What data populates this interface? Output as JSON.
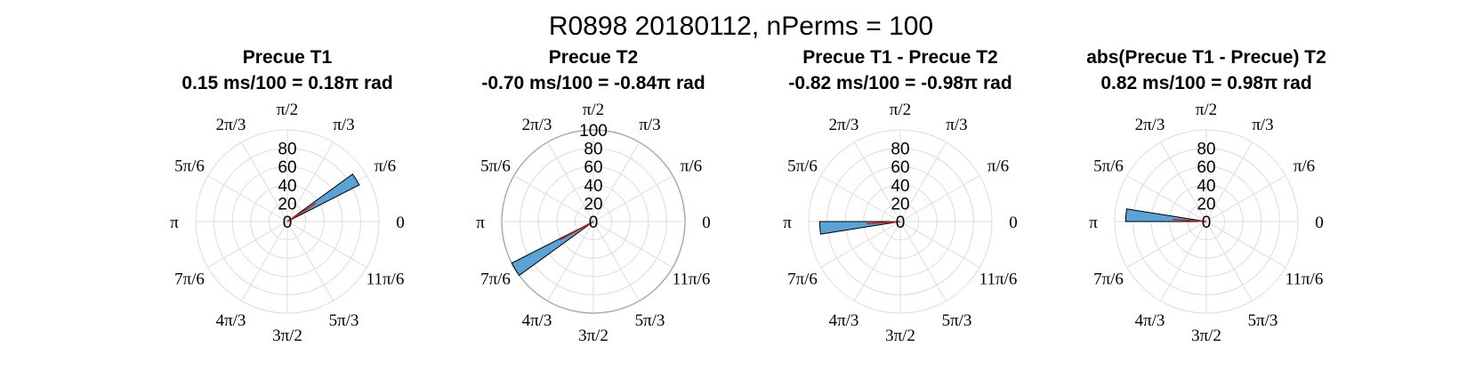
{
  "figure_title": "R0898 20180112, nPerms = 100",
  "theta_tick_labels": [
    "0",
    "π/6",
    "π/3",
    "π/2",
    "2π/3",
    "5π/6",
    "π",
    "7π/6",
    "4π/3",
    "3π/2",
    "5π/3",
    "11π/6"
  ],
  "colors": {
    "bar_fill": "#5ba3d6",
    "bar_edge": "#000000",
    "mean_line": "#c0282d",
    "grid": "#dcdcdc",
    "outer_ring": "#a8a8a8",
    "text": "#000000"
  },
  "chart_data": [
    {
      "type": "polar-histogram",
      "title": "Precue T1",
      "subtitle": "0.15 ms/100 = 0.18π rad",
      "r_ticks": [
        "0",
        "20",
        "40",
        "60",
        "80"
      ],
      "rlim": [
        0,
        100
      ],
      "bin_width_pi": 0.05,
      "bins": [
        {
          "center_pi": 0.175,
          "count": 88
        }
      ],
      "mean_angle_pi": 0.18,
      "outer_ring_visible": false
    },
    {
      "type": "polar-histogram",
      "title": "Precue T2",
      "subtitle": "-0.70 ms/100 = -0.84π rad",
      "r_ticks": [
        "0",
        "20",
        "40",
        "60",
        "80",
        "100"
      ],
      "rlim": [
        0,
        100
      ],
      "bin_width_pi": 0.05,
      "bins": [
        {
          "center_pi": 1.175,
          "count": 100
        }
      ],
      "mean_angle_pi": -0.84,
      "outer_ring_visible": true
    },
    {
      "type": "polar-histogram",
      "title": "Precue T1 - Precue T2",
      "subtitle": "-0.82 ms/100 = -0.98π rad",
      "r_ticks": [
        "0",
        "20",
        "40",
        "60",
        "80"
      ],
      "rlim": [
        0,
        100
      ],
      "bin_width_pi": 0.05,
      "bins": [
        {
          "center_pi": 1.025,
          "count": 88
        }
      ],
      "mean_angle_pi": -0.98,
      "outer_ring_visible": false
    },
    {
      "type": "polar-histogram",
      "title": "abs(Precue T1 - Precue) T2",
      "subtitle": "0.82 ms/100 = 0.98π rad",
      "r_ticks": [
        "0",
        "20",
        "40",
        "60",
        "80"
      ],
      "rlim": [
        0,
        100
      ],
      "bin_width_pi": 0.05,
      "bins": [
        {
          "center_pi": 0.975,
          "count": 88
        }
      ],
      "mean_angle_pi": 0.98,
      "outer_ring_visible": false
    }
  ]
}
